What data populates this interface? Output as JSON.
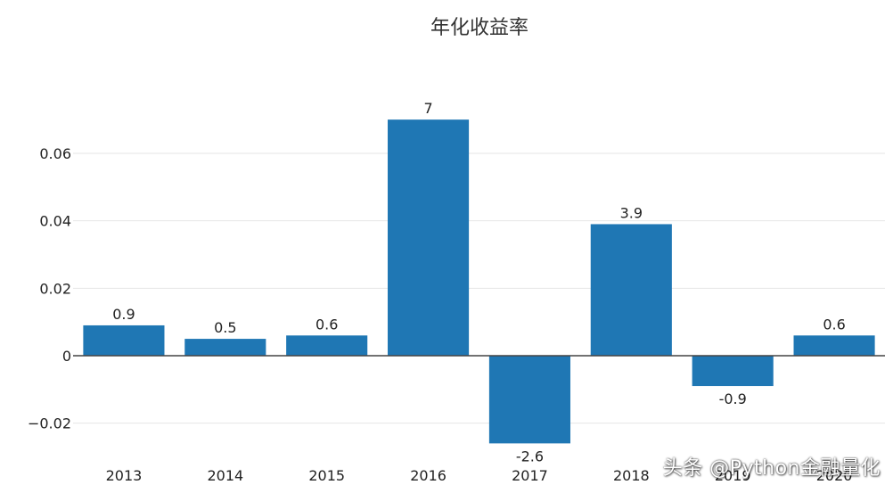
{
  "watermark": "头条 @Python金融量化",
  "colors": {
    "bar": "#1f77b4",
    "grid": "#e6e6e6",
    "zero_line": "#444444",
    "text": "#222222"
  },
  "chart_data": {
    "type": "bar",
    "title": "年化收益率",
    "xlabel": "",
    "ylabel": "",
    "categories": [
      "2013",
      "2014",
      "2015",
      "2016",
      "2017",
      "2018",
      "2019",
      "2020"
    ],
    "values": [
      0.009,
      0.005,
      0.006,
      0.07,
      -0.026,
      0.039,
      -0.009,
      0.006
    ],
    "data_labels": [
      "0.9",
      "0.5",
      "0.6",
      "7",
      "-2.6",
      "3.9",
      "-0.9",
      "0.6"
    ],
    "ylim": [
      -0.028,
      0.075
    ],
    "y_ticks": [
      -0.02,
      0,
      0.02,
      0.04,
      0.06
    ],
    "y_tick_labels": [
      "−0.02",
      "0",
      "0.02",
      "0.04",
      "0.06"
    ],
    "grid": true,
    "legend": "none"
  }
}
